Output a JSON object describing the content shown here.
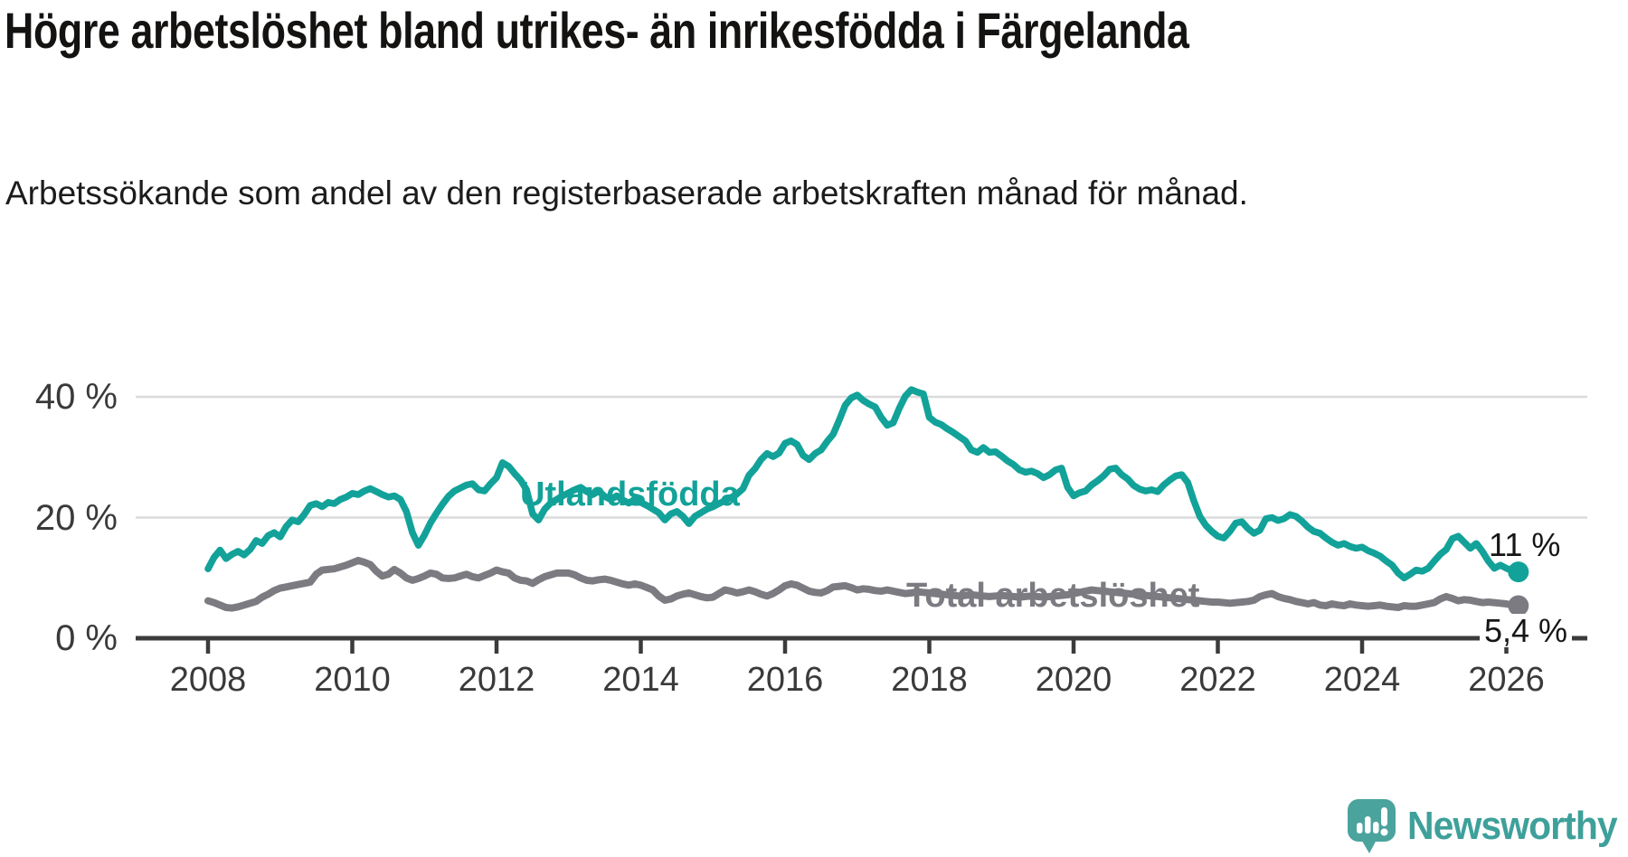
{
  "title": "Högre arbetslöshet bland utrikes- än inrikesfödda i Färgelanda",
  "subtitle": "Arbetssökande som andel av den registerbaserade arbetskraften månad för månad.",
  "branding": {
    "name": "Newsworthy",
    "color": "#3EA09A",
    "icon": "newsworthy-chart-speech-bubble-icon",
    "icon_color": "#4BA39E"
  },
  "chart_data": {
    "type": "line",
    "title": "Högre arbetslöshet bland utrikes- än inrikesfödda i Färgelanda",
    "subtitle": "Arbetssökande som andel av den registerbaserade arbetskraften månad för månad.",
    "unit": "%",
    "grid": true,
    "legend_position": "inline-labels",
    "x_axis": {
      "tick_years": [
        2008,
        2010,
        2012,
        2014,
        2016,
        2018,
        2020,
        2022,
        2024,
        2026
      ],
      "tick_labels": [
        "2008",
        "2010",
        "2012",
        "2014",
        "2016",
        "2018",
        "2020",
        "2022",
        "2024",
        "2026"
      ],
      "range": [
        2007.0,
        2026.6
      ]
    },
    "y_axis": {
      "ticks": [
        0,
        20,
        40
      ],
      "tick_labels": [
        "0 %",
        "20 %",
        "40 %"
      ],
      "range": [
        0,
        44
      ]
    },
    "series": [
      {
        "id": "utlandsfodda",
        "name": "Utlandsfödda",
        "color": "#12A299",
        "stroke_width": 7.5,
        "start_year": 2008,
        "interval": "monthly",
        "end_label": "11 %",
        "end_value": 11,
        "values": [
          11.5,
          13.4,
          14.6,
          13.2,
          13.9,
          14.4,
          13.8,
          14.7,
          16.2,
          15.7,
          17.0,
          17.5,
          16.8,
          18.5,
          19.6,
          19.3,
          20.5,
          22.0,
          22.3,
          21.8,
          22.5,
          22.3,
          23.0,
          23.4,
          24.0,
          23.8,
          24.4,
          24.8,
          24.3,
          23.8,
          23.4,
          23.6,
          23.0,
          21.0,
          17.5,
          15.4,
          17.1,
          19.1,
          20.7,
          22.2,
          23.5,
          24.4,
          24.9,
          25.4,
          25.6,
          24.6,
          24.4,
          25.6,
          26.6,
          29.1,
          28.5,
          27.3,
          26.2,
          24.6,
          20.6,
          19.6,
          21.4,
          22.4,
          23.0,
          23.6,
          24.1,
          24.6,
          25.0,
          24.3,
          23.8,
          24.4,
          23.5,
          23.0,
          23.6,
          22.9,
          22.4,
          23.0,
          22.5,
          22.0,
          21.4,
          20.8,
          19.6,
          20.6,
          21.0,
          20.2,
          19.0,
          20.2,
          20.8,
          21.4,
          21.8,
          22.3,
          22.8,
          23.3,
          23.9,
          24.8,
          27.0,
          28.1,
          29.6,
          30.6,
          30.1,
          30.7,
          32.3,
          32.7,
          32.1,
          30.3,
          29.6,
          30.6,
          31.2,
          32.6,
          33.8,
          36.1,
          38.6,
          39.8,
          40.3,
          39.4,
          38.8,
          38.3,
          36.6,
          35.3,
          35.7,
          38.1,
          40.1,
          41.2,
          40.8,
          40.5,
          36.6,
          35.8,
          35.4,
          34.7,
          34.1,
          33.4,
          32.7,
          31.2,
          30.8,
          31.6,
          30.8,
          30.9,
          30.2,
          29.4,
          28.8,
          27.9,
          27.5,
          27.7,
          27.3,
          26.6,
          27.1,
          27.9,
          28.2,
          25.0,
          23.6,
          24.1,
          24.4,
          25.4,
          26.1,
          26.9,
          28.0,
          28.2,
          27.1,
          26.4,
          25.3,
          24.7,
          24.4,
          24.6,
          24.3,
          25.4,
          26.2,
          26.9,
          27.1,
          25.8,
          22.8,
          20.2,
          18.7,
          17.7,
          16.9,
          16.6,
          17.7,
          19.1,
          19.3,
          18.2,
          17.4,
          17.9,
          19.8,
          20.0,
          19.5,
          19.8,
          20.5,
          20.2,
          19.4,
          18.4,
          17.7,
          17.4,
          16.6,
          15.9,
          15.4,
          15.7,
          15.2,
          14.9,
          15.1,
          14.5,
          14.1,
          13.6,
          12.8,
          12.1,
          10.8,
          10.0,
          10.6,
          11.3,
          11.1,
          11.6,
          12.8,
          13.9,
          14.7,
          16.5,
          16.9,
          15.9,
          14.9,
          15.7,
          14.4,
          12.8,
          11.6,
          12.1,
          11.6,
          11.2,
          11.0
        ]
      },
      {
        "id": "total-arbetsloshet",
        "name": "Total arbetslöshet",
        "color": "#7B7B81",
        "stroke_width": 8,
        "start_year": 2008,
        "interval": "monthly",
        "end_label": "5,4 %",
        "end_value": 5.4,
        "values": [
          6.2,
          5.9,
          5.5,
          5.1,
          5.0,
          5.2,
          5.5,
          5.8,
          6.1,
          6.8,
          7.3,
          7.9,
          8.3,
          8.5,
          8.7,
          8.9,
          9.1,
          9.3,
          10.6,
          11.3,
          11.4,
          11.5,
          11.8,
          12.1,
          12.5,
          12.9,
          12.6,
          12.2,
          11.1,
          10.3,
          10.6,
          11.4,
          10.8,
          10.0,
          9.6,
          9.9,
          10.3,
          10.8,
          10.6,
          10.0,
          9.9,
          10.0,
          10.3,
          10.6,
          10.2,
          10.0,
          10.4,
          10.8,
          11.3,
          11.0,
          10.8,
          10.0,
          9.6,
          9.5,
          9.1,
          9.7,
          10.2,
          10.5,
          10.8,
          10.8,
          10.8,
          10.5,
          10.0,
          9.6,
          9.5,
          9.7,
          9.8,
          9.6,
          9.3,
          9.0,
          8.8,
          9.0,
          8.8,
          8.4,
          8.0,
          7.0,
          6.3,
          6.5,
          7.0,
          7.3,
          7.5,
          7.2,
          6.9,
          6.7,
          6.8,
          7.4,
          8.0,
          7.8,
          7.5,
          7.7,
          8.0,
          7.7,
          7.3,
          7.0,
          7.4,
          8.0,
          8.7,
          9.0,
          8.8,
          8.3,
          7.8,
          7.6,
          7.5,
          7.9,
          8.5,
          8.6,
          8.7,
          8.4,
          8.0,
          8.2,
          8.1,
          7.9,
          7.8,
          8.0,
          7.8,
          7.6,
          7.4,
          7.5,
          7.7,
          7.6,
          7.5,
          7.4,
          7.3,
          7.2,
          7.1,
          7.0,
          7.1,
          7.2,
          7.1,
          7.0,
          6.9,
          7.0,
          7.1,
          7.0,
          6.9,
          6.8,
          6.9,
          7.0,
          6.9,
          6.8,
          6.9,
          7.0,
          7.1,
          7.2,
          7.4,
          7.6,
          7.8,
          8.0,
          7.9,
          7.8,
          7.7,
          7.6,
          7.5,
          7.4,
          7.3,
          7.2,
          7.1,
          7.0,
          6.9,
          6.8,
          6.7,
          6.6,
          6.5,
          6.4,
          6.3,
          6.2,
          6.1,
          6.0,
          6.0,
          5.9,
          5.8,
          5.9,
          6.0,
          6.1,
          6.3,
          6.9,
          7.2,
          7.4,
          6.9,
          6.6,
          6.4,
          6.1,
          5.9,
          5.7,
          5.9,
          5.5,
          5.4,
          5.7,
          5.5,
          5.4,
          5.7,
          5.5,
          5.4,
          5.3,
          5.4,
          5.5,
          5.3,
          5.2,
          5.1,
          5.4,
          5.3,
          5.3,
          5.5,
          5.7,
          5.9,
          6.5,
          6.9,
          6.6,
          6.2,
          6.4,
          6.3,
          6.1,
          5.9,
          6.0,
          5.9,
          5.8,
          5.7,
          5.5,
          5.4
        ]
      }
    ]
  }
}
